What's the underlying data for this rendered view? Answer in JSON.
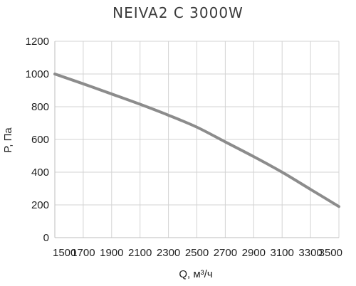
{
  "chart_data": {
    "type": "line",
    "title": "NEIVA2 C 3000W",
    "xlabel": "Q, м³/ч",
    "ylabel": "P, Па",
    "xlim": [
      1500,
      3500
    ],
    "ylim": [
      0,
      1200
    ],
    "x_ticks": [
      1500,
      1700,
      1900,
      2100,
      2300,
      2500,
      2700,
      2900,
      3100,
      3300,
      3500
    ],
    "y_ticks": [
      0,
      200,
      400,
      600,
      800,
      1000,
      1200
    ],
    "grid": true,
    "legend": "none",
    "series": [
      {
        "color": "#8c8c8c",
        "x": [
          1500,
          1700,
          1900,
          2100,
          2300,
          2500,
          2700,
          2900,
          3100,
          3300,
          3500
        ],
        "y": [
          1000,
          940,
          878,
          815,
          748,
          675,
          585,
          495,
          400,
          295,
          190
        ]
      }
    ]
  }
}
